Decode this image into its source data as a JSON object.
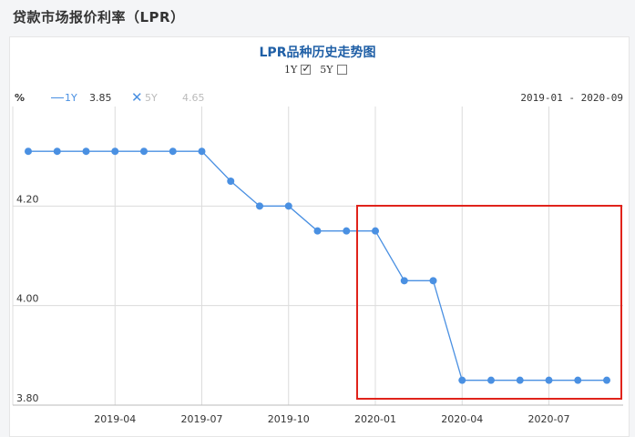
{
  "page_title": "贷款市场报价利率（LPR）",
  "chart_title": "LPR品种历史走势图",
  "toggles": [
    {
      "label": "1Y",
      "checked": true
    },
    {
      "label": "5Y",
      "checked": false
    }
  ],
  "legend": {
    "unit": "%",
    "series_1_name": "1Y",
    "series_1_value": "3.85",
    "series_2_name": "5Y",
    "series_2_value": "4.65",
    "date_range": "2019-01 - 2020-09"
  },
  "colors": {
    "line": "#4a90e2",
    "highlight_box": "#e0231b",
    "grid": "#dcdcdc"
  },
  "chart_data": {
    "type": "line",
    "title": "LPR品种历史走势图",
    "ylabel": "%",
    "ylim": [
      3.8,
      4.4
    ],
    "yticks": [
      "4.20",
      "4.00",
      "3.80"
    ],
    "xticks": [
      "2019-04",
      "2019-07",
      "2019-10",
      "2020-01",
      "2020-04",
      "2020-07"
    ],
    "series": [
      {
        "name": "1Y",
        "x": [
          "2019-01",
          "2019-02",
          "2019-03",
          "2019-04",
          "2019-05",
          "2019-06",
          "2019-07",
          "2019-08",
          "2019-09",
          "2019-10",
          "2019-11",
          "2019-12",
          "2020-01",
          "2020-02",
          "2020-03",
          "2020-04",
          "2020-05",
          "2020-06",
          "2020-07",
          "2020-08",
          "2020-09"
        ],
        "values": [
          4.31,
          4.31,
          4.31,
          4.31,
          4.31,
          4.31,
          4.31,
          4.25,
          4.2,
          4.2,
          4.15,
          4.15,
          4.15,
          4.05,
          4.05,
          3.85,
          3.85,
          3.85,
          3.85,
          3.85,
          3.85
        ]
      }
    ],
    "grid": true
  }
}
